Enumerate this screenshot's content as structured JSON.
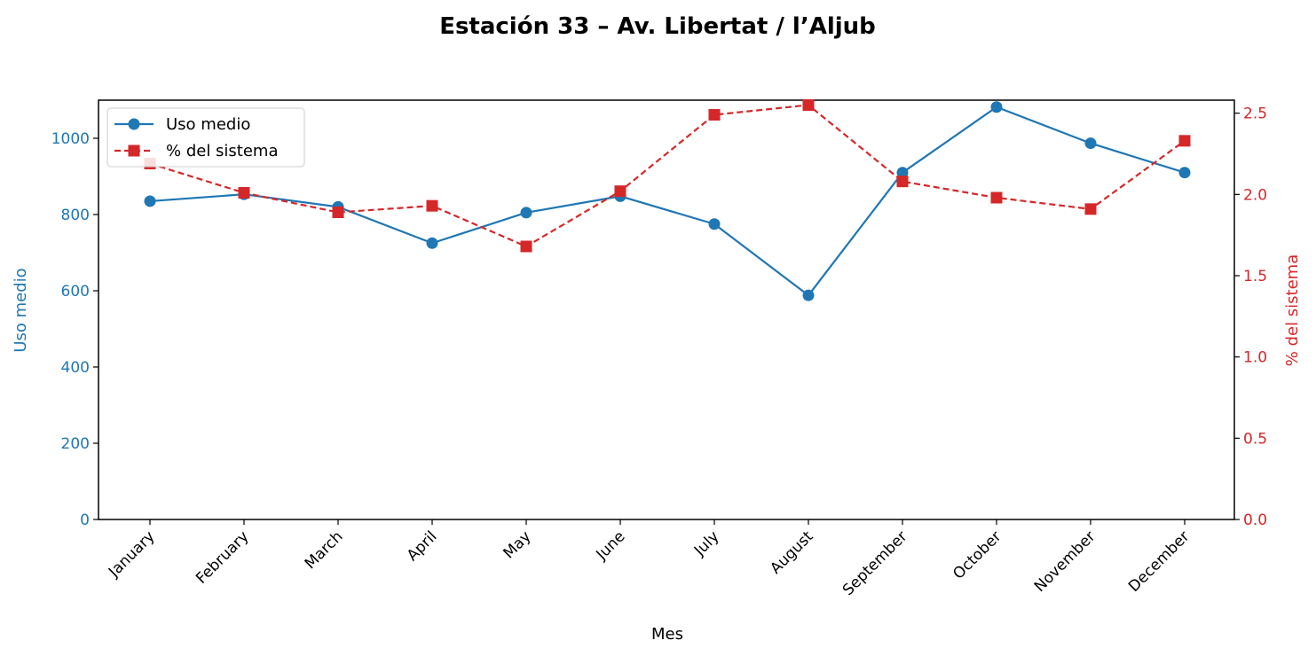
{
  "chart_data": {
    "type": "line",
    "title": "Estación 33 – Av. Libertat / l’Aljub",
    "xlabel": "Mes",
    "ylabel_left": "Uso medio",
    "ylabel_right": "% del sistema",
    "categories": [
      "January",
      "February",
      "March",
      "April",
      "May",
      "June",
      "July",
      "August",
      "September",
      "October",
      "November",
      "December"
    ],
    "ylim_left": [
      0,
      1100
    ],
    "yticks_left": [
      "0",
      "200",
      "400",
      "600",
      "800",
      "1000"
    ],
    "ylim_right": [
      0,
      2.58
    ],
    "yticks_right": [
      "0.0",
      "0.5",
      "1.0",
      "1.5",
      "2.0",
      "2.5"
    ],
    "grid": false,
    "legend_position": "upper-left",
    "series": [
      {
        "name": "Uso medio",
        "axis": "left",
        "style": "solid",
        "marker": "circle",
        "color": "#1f77b4",
        "values": [
          835,
          853,
          820,
          725,
          805,
          848,
          775,
          588,
          910,
          1082,
          987,
          910
        ]
      },
      {
        "name": "% del sistema",
        "axis": "right",
        "style": "dashed",
        "marker": "square",
        "color": "#d62728",
        "values": [
          2.19,
          2.01,
          1.89,
          1.93,
          1.68,
          2.02,
          2.49,
          2.55,
          2.08,
          1.98,
          1.91,
          2.33
        ]
      }
    ]
  }
}
